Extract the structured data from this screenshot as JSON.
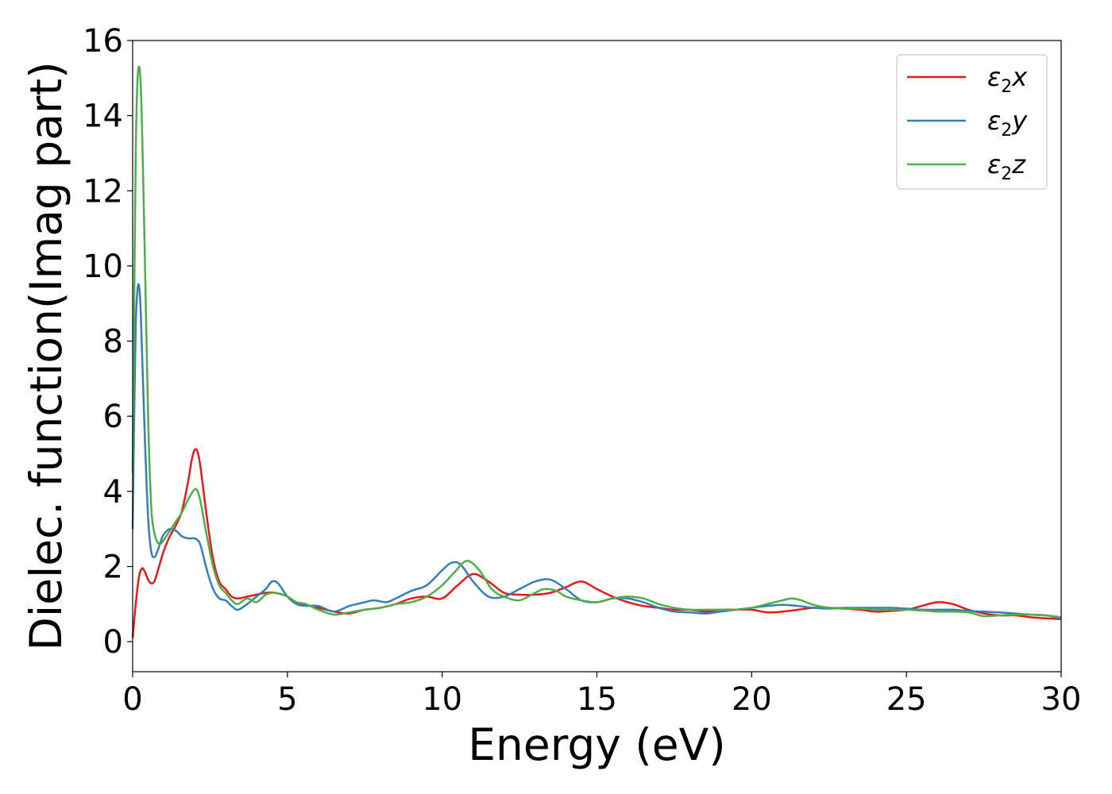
{
  "chart_data": {
    "type": "line",
    "xlabel": "Energy (eV)",
    "ylabel": "Dielec. function(Imag part)",
    "xlim": [
      0,
      30
    ],
    "ylim": [
      -0.8,
      16
    ],
    "xticks": [
      0,
      5,
      10,
      15,
      20,
      25,
      30
    ],
    "yticks": [
      0,
      2,
      4,
      6,
      8,
      10,
      12,
      14,
      16
    ],
    "grid": false,
    "legend_position": "top-right",
    "series": [
      {
        "name": "ε₂x",
        "legend_base": "ε",
        "legend_sub": "2",
        "legend_var": "x",
        "color": "#e41a1c",
        "points": [
          [
            0,
            0.1
          ],
          [
            0.1,
            1.0
          ],
          [
            0.2,
            1.7
          ],
          [
            0.3,
            1.95
          ],
          [
            0.4,
            1.85
          ],
          [
            0.5,
            1.65
          ],
          [
            0.6,
            1.55
          ],
          [
            0.7,
            1.6
          ],
          [
            0.8,
            1.85
          ],
          [
            1.0,
            2.4
          ],
          [
            1.2,
            2.8
          ],
          [
            1.4,
            3.1
          ],
          [
            1.6,
            3.5
          ],
          [
            1.8,
            4.3
          ],
          [
            1.9,
            4.8
          ],
          [
            2.0,
            5.1
          ],
          [
            2.1,
            5.05
          ],
          [
            2.2,
            4.6
          ],
          [
            2.4,
            3.3
          ],
          [
            2.6,
            2.2
          ],
          [
            2.8,
            1.6
          ],
          [
            3.0,
            1.4
          ],
          [
            3.2,
            1.2
          ],
          [
            3.4,
            1.15
          ],
          [
            3.7,
            1.2
          ],
          [
            4.0,
            1.25
          ],
          [
            4.3,
            1.3
          ],
          [
            4.6,
            1.3
          ],
          [
            5.0,
            1.2
          ],
          [
            5.2,
            1.05
          ],
          [
            5.5,
            1.0
          ],
          [
            6.0,
            0.9
          ],
          [
            6.5,
            0.8
          ],
          [
            7.0,
            0.75
          ],
          [
            7.5,
            0.85
          ],
          [
            8.0,
            0.9
          ],
          [
            8.5,
            1.0
          ],
          [
            9.0,
            1.15
          ],
          [
            9.5,
            1.2
          ],
          [
            10.0,
            1.15
          ],
          [
            10.5,
            1.5
          ],
          [
            11.0,
            1.8
          ],
          [
            11.5,
            1.6
          ],
          [
            12.0,
            1.3
          ],
          [
            12.5,
            1.25
          ],
          [
            13.0,
            1.25
          ],
          [
            13.5,
            1.3
          ],
          [
            14.0,
            1.45
          ],
          [
            14.5,
            1.6
          ],
          [
            15.0,
            1.4
          ],
          [
            15.5,
            1.2
          ],
          [
            16.0,
            1.05
          ],
          [
            16.5,
            0.95
          ],
          [
            17.0,
            0.9
          ],
          [
            17.5,
            0.85
          ],
          [
            18.0,
            0.85
          ],
          [
            18.5,
            0.8
          ],
          [
            19.0,
            0.85
          ],
          [
            19.5,
            0.85
          ],
          [
            20.0,
            0.85
          ],
          [
            20.5,
            0.78
          ],
          [
            21.0,
            0.8
          ],
          [
            21.5,
            0.85
          ],
          [
            22.0,
            0.9
          ],
          [
            22.5,
            0.9
          ],
          [
            23.0,
            0.88
          ],
          [
            23.5,
            0.85
          ],
          [
            24.0,
            0.8
          ],
          [
            24.5,
            0.82
          ],
          [
            25.0,
            0.85
          ],
          [
            25.5,
            0.95
          ],
          [
            26.0,
            1.05
          ],
          [
            26.5,
            1.0
          ],
          [
            27.0,
            0.85
          ],
          [
            27.5,
            0.75
          ],
          [
            28.0,
            0.7
          ],
          [
            28.5,
            0.7
          ],
          [
            29.0,
            0.65
          ],
          [
            29.5,
            0.62
          ],
          [
            30.0,
            0.6
          ]
        ]
      },
      {
        "name": "ε₂y",
        "legend_base": "ε",
        "legend_sub": "2",
        "legend_var": "y",
        "color": "#377eb8",
        "points": [
          [
            0,
            3.0
          ],
          [
            0.05,
            6.0
          ],
          [
            0.1,
            8.4
          ],
          [
            0.15,
            9.3
          ],
          [
            0.2,
            9.5
          ],
          [
            0.25,
            9.0
          ],
          [
            0.3,
            7.8
          ],
          [
            0.4,
            5.3
          ],
          [
            0.5,
            3.3
          ],
          [
            0.6,
            2.4
          ],
          [
            0.7,
            2.25
          ],
          [
            0.8,
            2.4
          ],
          [
            0.9,
            2.65
          ],
          [
            1.0,
            2.85
          ],
          [
            1.2,
            3.0
          ],
          [
            1.4,
            2.95
          ],
          [
            1.6,
            2.8
          ],
          [
            1.8,
            2.75
          ],
          [
            2.0,
            2.75
          ],
          [
            2.1,
            2.7
          ],
          [
            2.2,
            2.55
          ],
          [
            2.4,
            1.9
          ],
          [
            2.6,
            1.4
          ],
          [
            2.8,
            1.15
          ],
          [
            3.0,
            1.1
          ],
          [
            3.2,
            0.95
          ],
          [
            3.4,
            0.85
          ],
          [
            3.7,
            1.0
          ],
          [
            4.0,
            1.2
          ],
          [
            4.3,
            1.4
          ],
          [
            4.5,
            1.6
          ],
          [
            4.7,
            1.55
          ],
          [
            5.0,
            1.2
          ],
          [
            5.3,
            1.0
          ],
          [
            5.6,
            0.95
          ],
          [
            6.0,
            0.95
          ],
          [
            6.5,
            0.8
          ],
          [
            7.0,
            0.95
          ],
          [
            7.5,
            1.05
          ],
          [
            7.8,
            1.1
          ],
          [
            8.2,
            1.05
          ],
          [
            8.5,
            1.15
          ],
          [
            9.0,
            1.35
          ],
          [
            9.5,
            1.5
          ],
          [
            10.0,
            1.9
          ],
          [
            10.3,
            2.1
          ],
          [
            10.6,
            2.05
          ],
          [
            11.0,
            1.6
          ],
          [
            11.5,
            1.2
          ],
          [
            12.0,
            1.2
          ],
          [
            12.5,
            1.4
          ],
          [
            13.0,
            1.6
          ],
          [
            13.5,
            1.65
          ],
          [
            14.0,
            1.4
          ],
          [
            14.5,
            1.1
          ],
          [
            15.0,
            1.05
          ],
          [
            15.5,
            1.15
          ],
          [
            16.0,
            1.15
          ],
          [
            16.5,
            1.05
          ],
          [
            17.0,
            0.9
          ],
          [
            17.5,
            0.8
          ],
          [
            18.0,
            0.78
          ],
          [
            18.5,
            0.75
          ],
          [
            19.0,
            0.8
          ],
          [
            19.5,
            0.85
          ],
          [
            20.0,
            0.9
          ],
          [
            20.5,
            0.95
          ],
          [
            21.0,
            0.98
          ],
          [
            21.5,
            0.95
          ],
          [
            22.0,
            0.9
          ],
          [
            22.5,
            0.88
          ],
          [
            23.0,
            0.9
          ],
          [
            23.5,
            0.9
          ],
          [
            24.0,
            0.9
          ],
          [
            24.5,
            0.9
          ],
          [
            25.0,
            0.88
          ],
          [
            25.5,
            0.85
          ],
          [
            26.0,
            0.85
          ],
          [
            26.5,
            0.85
          ],
          [
            27.0,
            0.82
          ],
          [
            27.5,
            0.8
          ],
          [
            28.0,
            0.78
          ],
          [
            28.5,
            0.75
          ],
          [
            29.0,
            0.72
          ],
          [
            29.5,
            0.7
          ],
          [
            30.0,
            0.62
          ]
        ]
      },
      {
        "name": "ε₂z",
        "legend_base": "ε",
        "legend_sub": "2",
        "legend_var": "z",
        "color": "#4daf4a",
        "points": [
          [
            0,
            4.5
          ],
          [
            0.05,
            9.0
          ],
          [
            0.1,
            13.0
          ],
          [
            0.15,
            14.8
          ],
          [
            0.2,
            15.3
          ],
          [
            0.25,
            15.0
          ],
          [
            0.3,
            13.8
          ],
          [
            0.4,
            10.0
          ],
          [
            0.5,
            6.0
          ],
          [
            0.6,
            3.6
          ],
          [
            0.7,
            2.9
          ],
          [
            0.8,
            2.65
          ],
          [
            0.9,
            2.6
          ],
          [
            1.0,
            2.7
          ],
          [
            1.2,
            2.95
          ],
          [
            1.4,
            3.2
          ],
          [
            1.6,
            3.45
          ],
          [
            1.8,
            3.8
          ],
          [
            2.0,
            4.05
          ],
          [
            2.1,
            4.0
          ],
          [
            2.2,
            3.7
          ],
          [
            2.4,
            2.8
          ],
          [
            2.6,
            2.0
          ],
          [
            2.8,
            1.5
          ],
          [
            3.0,
            1.3
          ],
          [
            3.2,
            1.1
          ],
          [
            3.4,
            1.0
          ],
          [
            3.7,
            1.15
          ],
          [
            4.0,
            1.05
          ],
          [
            4.3,
            1.25
          ],
          [
            4.6,
            1.3
          ],
          [
            5.0,
            1.2
          ],
          [
            5.3,
            1.05
          ],
          [
            5.6,
            1.0
          ],
          [
            6.0,
            0.85
          ],
          [
            6.5,
            0.72
          ],
          [
            7.0,
            0.78
          ],
          [
            7.5,
            0.85
          ],
          [
            8.0,
            0.9
          ],
          [
            8.5,
            1.0
          ],
          [
            9.0,
            1.05
          ],
          [
            9.5,
            1.2
          ],
          [
            10.0,
            1.5
          ],
          [
            10.4,
            1.85
          ],
          [
            10.8,
            2.15
          ],
          [
            11.2,
            1.9
          ],
          [
            11.6,
            1.4
          ],
          [
            12.0,
            1.2
          ],
          [
            12.5,
            1.1
          ],
          [
            13.0,
            1.3
          ],
          [
            13.3,
            1.4
          ],
          [
            13.7,
            1.35
          ],
          [
            14.0,
            1.2
          ],
          [
            14.5,
            1.1
          ],
          [
            15.0,
            1.05
          ],
          [
            15.5,
            1.15
          ],
          [
            16.0,
            1.2
          ],
          [
            16.5,
            1.15
          ],
          [
            17.0,
            1.0
          ],
          [
            17.5,
            0.9
          ],
          [
            18.0,
            0.85
          ],
          [
            18.5,
            0.85
          ],
          [
            19.0,
            0.85
          ],
          [
            19.5,
            0.85
          ],
          [
            20.0,
            0.9
          ],
          [
            20.5,
            1.0
          ],
          [
            21.0,
            1.1
          ],
          [
            21.3,
            1.15
          ],
          [
            21.6,
            1.1
          ],
          [
            22.0,
            0.98
          ],
          [
            22.5,
            0.9
          ],
          [
            23.0,
            0.88
          ],
          [
            23.5,
            0.88
          ],
          [
            24.0,
            0.85
          ],
          [
            24.5,
            0.85
          ],
          [
            25.0,
            0.85
          ],
          [
            25.5,
            0.83
          ],
          [
            26.0,
            0.8
          ],
          [
            26.5,
            0.8
          ],
          [
            27.0,
            0.78
          ],
          [
            27.5,
            0.68
          ],
          [
            28.0,
            0.7
          ],
          [
            28.5,
            0.72
          ],
          [
            29.0,
            0.72
          ],
          [
            29.5,
            0.7
          ],
          [
            30.0,
            0.65
          ]
        ]
      }
    ]
  }
}
